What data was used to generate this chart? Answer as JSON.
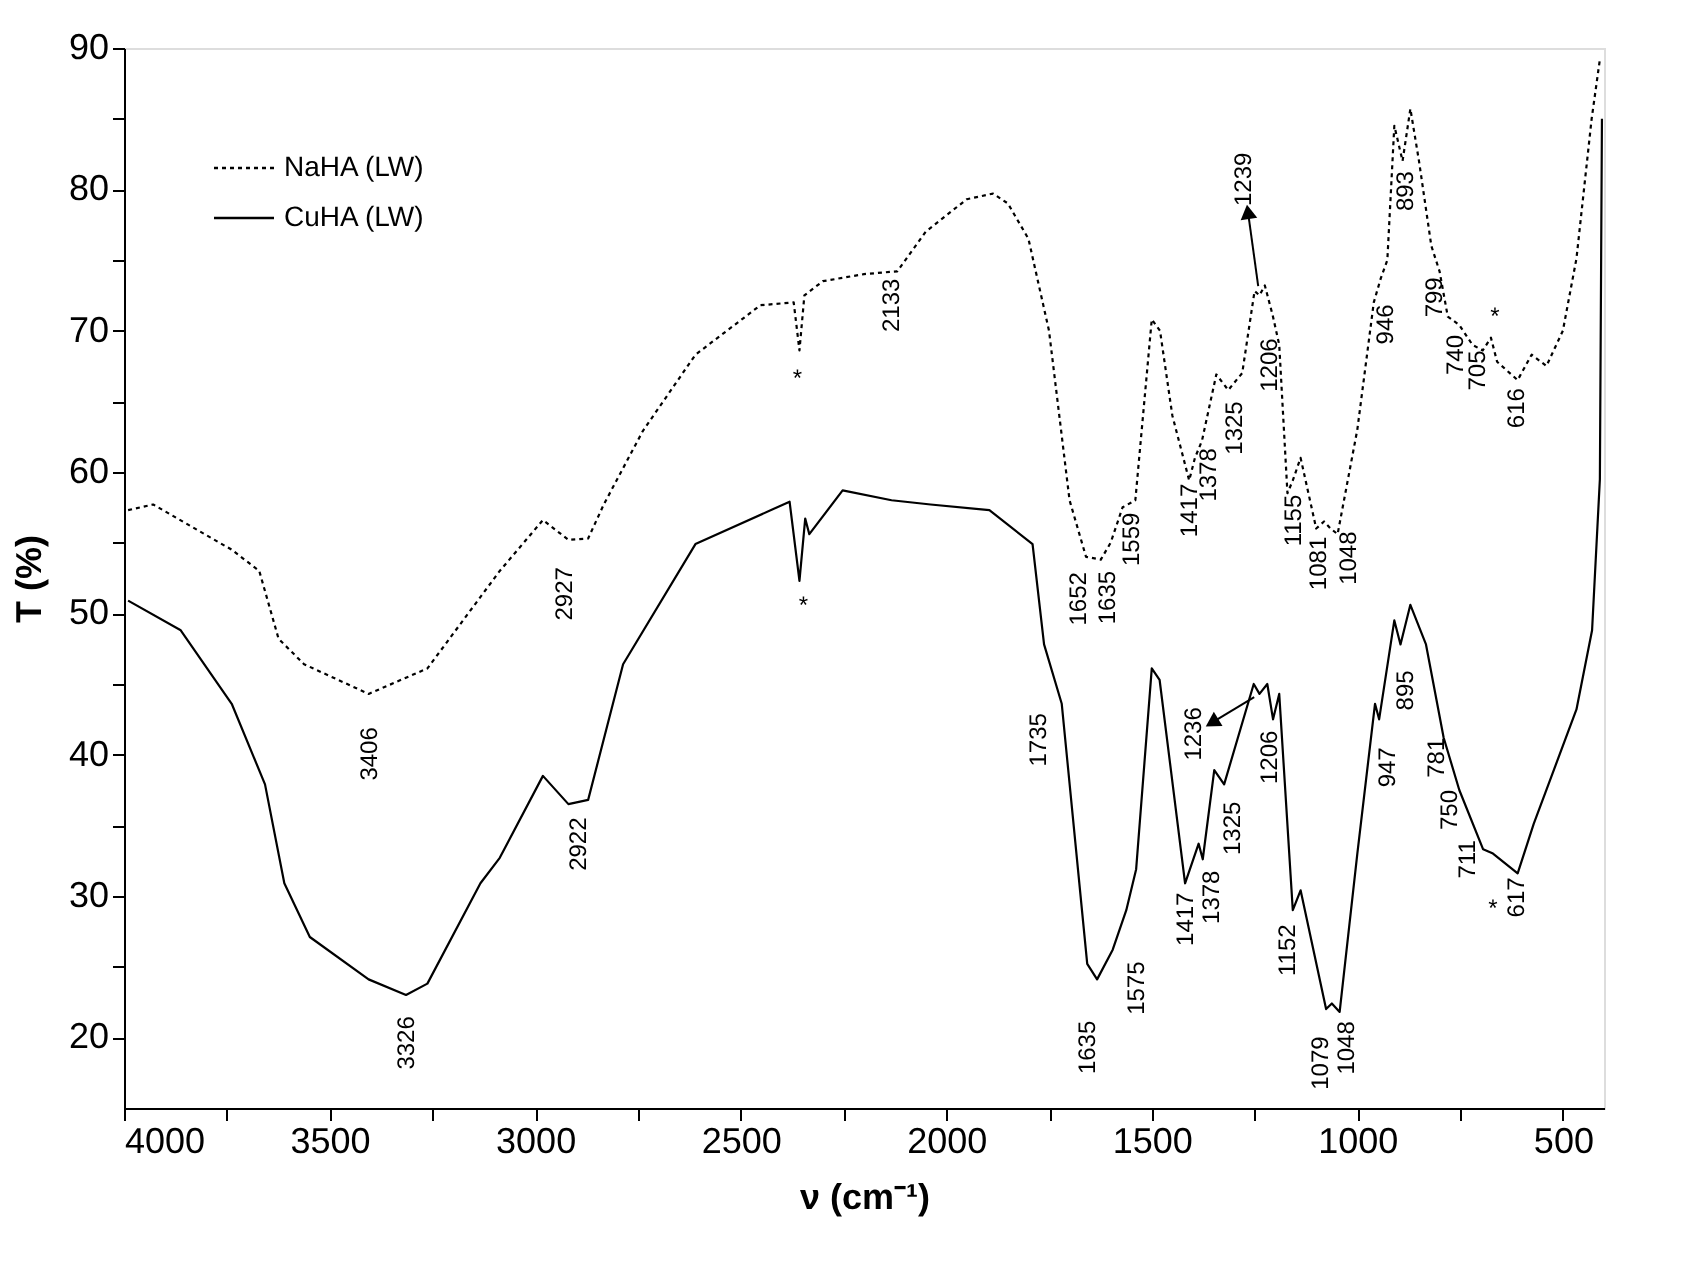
{
  "chart_data": {
    "type": "line",
    "xlabel": "ν (cm⁻¹)",
    "ylabel": "T (%)",
    "xlim": [
      4000,
      400
    ],
    "ylim": [
      15,
      90
    ],
    "xticks": [
      4000,
      {
        "value": 3750,
        "label": null
      },
      3500,
      {
        "value": 3250,
        "label": null
      },
      3000,
      {
        "value": 2750,
        "label": null
      },
      2500,
      {
        "value": 2250,
        "label": null
      },
      2000,
      {
        "value": 1750,
        "label": null
      },
      1500,
      {
        "value": 1250,
        "label": null
      },
      1000,
      {
        "value": 750,
        "label": null
      },
      500
    ],
    "yticks": [
      20,
      {
        "value": 25,
        "label": null
      },
      30,
      {
        "value": 35,
        "label": null
      },
      40,
      {
        "value": 45,
        "label": null
      },
      50,
      {
        "value": 55,
        "label": null
      },
      60,
      {
        "value": 65,
        "label": null
      },
      70,
      {
        "value": 75,
        "label": null
      },
      80,
      {
        "value": 85,
        "label": null
      },
      90
    ],
    "grid": false,
    "legend": "top left",
    "series": [
      {
        "name": "NaHA (LW)",
        "color": "#000000",
        "line_style": "dotted",
        "x": [
          3990,
          3929,
          3738,
          3671,
          3624,
          3562,
          3405,
          3262,
          3086,
          2981,
          2919,
          2871,
          2833,
          2738,
          2610,
          2452,
          2371,
          2357,
          2345,
          2300,
          2200,
          2119,
          2050,
          1950,
          1886,
          1850,
          1800,
          1750,
          1700,
          1660,
          1624,
          1600,
          1571,
          1540,
          1500,
          1480,
          1450,
          1409,
          1395,
          1378,
          1343,
          1314,
          1280,
          1250,
          1238,
          1225,
          1206,
          1190,
          1170,
          1157,
          1138,
          1100,
          1081,
          1065,
          1048,
          1000,
          960,
          943,
          927,
          910,
          890,
          871,
          850,
          820,
          800,
          780,
          752,
          720,
          695,
          675,
          660,
          610,
          576,
          540,
          500,
          467,
          430,
          410
        ],
        "values": [
          57.3,
          57.7,
          54.5,
          53,
          48.2,
          46.4,
          44.3,
          46.1,
          53,
          56.6,
          55.2,
          55.3,
          57.7,
          62.9,
          68.3,
          71.8,
          72,
          68.6,
          72.5,
          73.5,
          74,
          74.2,
          77,
          79.3,
          79.7,
          79,
          76.5,
          70,
          58,
          54,
          53.8,
          55,
          57.5,
          58,
          70.8,
          70,
          64,
          59.4,
          61,
          62.2,
          66.9,
          65.8,
          67,
          72.8,
          72.5,
          73.2,
          71.1,
          69,
          58.5,
          59.4,
          61,
          56,
          56.5,
          56,
          55.6,
          63,
          72,
          73.7,
          75,
          84.5,
          82,
          85.7,
          82,
          76,
          74.2,
          71,
          70.4,
          69,
          68.6,
          69.5,
          67.8,
          66.5,
          68.3,
          67.5,
          70,
          75.1,
          85,
          89.2
        ]
      },
      {
        "name": "CuHA (LW)",
        "color": "#000000",
        "line_style": "solid",
        "x": [
          3990,
          3862,
          3738,
          3657,
          3610,
          3548,
          3405,
          3314,
          3262,
          3133,
          3086,
          2981,
          2919,
          2871,
          2786,
          2610,
          2381,
          2357,
          2343,
          2333,
          2252,
          2133,
          2038,
          1895,
          1790,
          1762,
          1719,
          1657,
          1633,
          1595,
          1562,
          1538,
          1500,
          1481,
          1419,
          1386,
          1376,
          1348,
          1324,
          1252,
          1238,
          1219,
          1205,
          1190,
          1157,
          1138,
          1076,
          1062,
          1043,
          1000,
          957,
          947,
          910,
          895,
          871,
          833,
          790,
          752,
          694,
          670,
          610,
          571,
          467,
          429,
          410,
          405
        ],
        "values": [
          50.9,
          48.8,
          43.6,
          37.9,
          30.9,
          27.1,
          24.1,
          23,
          23.8,
          30.9,
          32.7,
          38.5,
          36.5,
          36.8,
          46.4,
          54.9,
          57.9,
          52.3,
          56.7,
          55.6,
          58.7,
          58,
          57.7,
          57.3,
          54.9,
          47.8,
          43.6,
          25.2,
          24.1,
          26.2,
          29,
          31.9,
          46.1,
          45.3,
          30.9,
          33.7,
          32.6,
          38.9,
          37.9,
          45,
          44.3,
          45,
          42.5,
          44.3,
          29,
          30.4,
          22,
          22.4,
          21.8,
          33,
          43.6,
          42.5,
          49.5,
          47.8,
          50.6,
          47.8,
          41.2,
          37.5,
          33.3,
          33,
          31.6,
          35.1,
          43.2,
          48.8,
          59.5,
          85
        ]
      }
    ],
    "annotations": [
      {
        "text": "3406",
        "x": 3405,
        "y": 44.3
      },
      {
        "text": "2927",
        "x": 2919,
        "y": 55.2
      },
      {
        "text": "2133",
        "x": 2119,
        "y": 74.2
      },
      {
        "text": "*",
        "x": 2357,
        "y": 68.6
      },
      {
        "text": "1652",
        "x": 1660,
        "y": 54
      },
      {
        "text": "1635",
        "x": 1624,
        "y": 53.8
      },
      {
        "text": "1559",
        "x": 1571,
        "y": 57.5
      },
      {
        "text": "1417",
        "x": 1409,
        "y": 59.4
      },
      {
        "text": "1378",
        "x": 1378,
        "y": 62.2
      },
      {
        "text": "1325",
        "x": 1314,
        "y": 65.8
      },
      {
        "text": "1239",
        "x": 1238,
        "y": 72.5
      },
      {
        "text": "1206",
        "x": 1206,
        "y": 71.1
      },
      {
        "text": "1155",
        "x": 1157,
        "y": 59.4
      },
      {
        "text": "1081",
        "x": 1081,
        "y": 56.5
      },
      {
        "text": "1048",
        "x": 1048,
        "y": 55.6
      },
      {
        "text": "946",
        "x": 943,
        "y": 73.7
      },
      {
        "text": "893",
        "x": 890,
        "y": 82
      },
      {
        "text": "799",
        "x": 800,
        "y": 74.2
      },
      {
        "text": "740",
        "x": 752,
        "y": 70.4
      },
      {
        "text": "705",
        "x": 695,
        "y": 68.6
      },
      {
        "text": "*",
        "x": 675,
        "y": 69.5
      },
      {
        "text": "616",
        "x": 610,
        "y": 66.5
      },
      {
        "text": "3326",
        "x": 3314,
        "y": 23
      },
      {
        "text": "2922",
        "x": 2919,
        "y": 36.5
      },
      {
        "text": "*",
        "x": 2357,
        "y": 52.3
      },
      {
        "text": "1735",
        "x": 1719,
        "y": 43.6
      },
      {
        "text": "1635",
        "x": 1633,
        "y": 24.1
      },
      {
        "text": "1575",
        "x": 1562,
        "y": 29
      },
      {
        "text": "1417",
        "x": 1419,
        "y": 30.9
      },
      {
        "text": "1378",
        "x": 1376,
        "y": 32.6
      },
      {
        "text": "1325",
        "x": 1324,
        "y": 37.9
      },
      {
        "text": "1236",
        "x": 1238,
        "y": 44.3
      },
      {
        "text": "1206",
        "x": 1205,
        "y": 42.5
      },
      {
        "text": "1152",
        "x": 1157,
        "y": 29
      },
      {
        "text": "1079",
        "x": 1076,
        "y": 22
      },
      {
        "text": "1048",
        "x": 1043,
        "y": 21.8
      },
      {
        "text": "947",
        "x": 947,
        "y": 42.5
      },
      {
        "text": "895",
        "x": 895,
        "y": 47.8
      },
      {
        "text": "781",
        "x": 790,
        "y": 41.2
      },
      {
        "text": "750",
        "x": 752,
        "y": 37.5
      },
      {
        "text": "711",
        "x": 694,
        "y": 33.3
      },
      {
        "text": "*",
        "x": 670,
        "y": 33
      },
      {
        "text": "617",
        "x": 610,
        "y": 31.6
      }
    ]
  }
}
